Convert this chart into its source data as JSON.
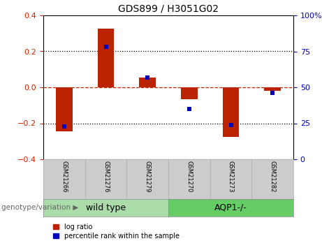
{
  "title": "GDS899 / H3051G02",
  "samples": [
    "GSM21266",
    "GSM21276",
    "GSM21279",
    "GSM21270",
    "GSM21273",
    "GSM21282"
  ],
  "log_ratio": [
    -0.245,
    0.325,
    0.055,
    -0.065,
    -0.275,
    -0.02
  ],
  "percentile_rank": [
    23,
    78,
    57,
    35,
    24,
    46
  ],
  "groups": [
    {
      "label": "wild type",
      "indices": [
        0,
        1,
        2
      ],
      "color": "#aaddaa"
    },
    {
      "label": "AQP1-/-",
      "indices": [
        3,
        4,
        5
      ],
      "color": "#66cc66"
    }
  ],
  "ylim_left": [
    -0.4,
    0.4
  ],
  "ylim_right": [
    0,
    100
  ],
  "yticks_left": [
    -0.4,
    -0.2,
    0.0,
    0.2,
    0.4
  ],
  "yticks_right": [
    0,
    25,
    50,
    75,
    100
  ],
  "bar_color_red": "#bb2200",
  "dot_color_blue": "#0000bb",
  "hline_color": "#cc2200",
  "dotted_color": "#000000",
  "left_tick_color": "#cc2200",
  "right_tick_color": "#0000bb",
  "bar_width": 0.4,
  "dot_size": 5,
  "legend_red_label": "log ratio",
  "legend_blue_label": "percentile rank within the sample",
  "genotype_label": "genotype/variation",
  "sample_box_color": "#cccccc",
  "title_fontsize": 10,
  "tick_fontsize": 8,
  "sample_fontsize": 6,
  "group_fontsize": 9,
  "legend_fontsize": 7,
  "genotype_fontsize": 7.5
}
